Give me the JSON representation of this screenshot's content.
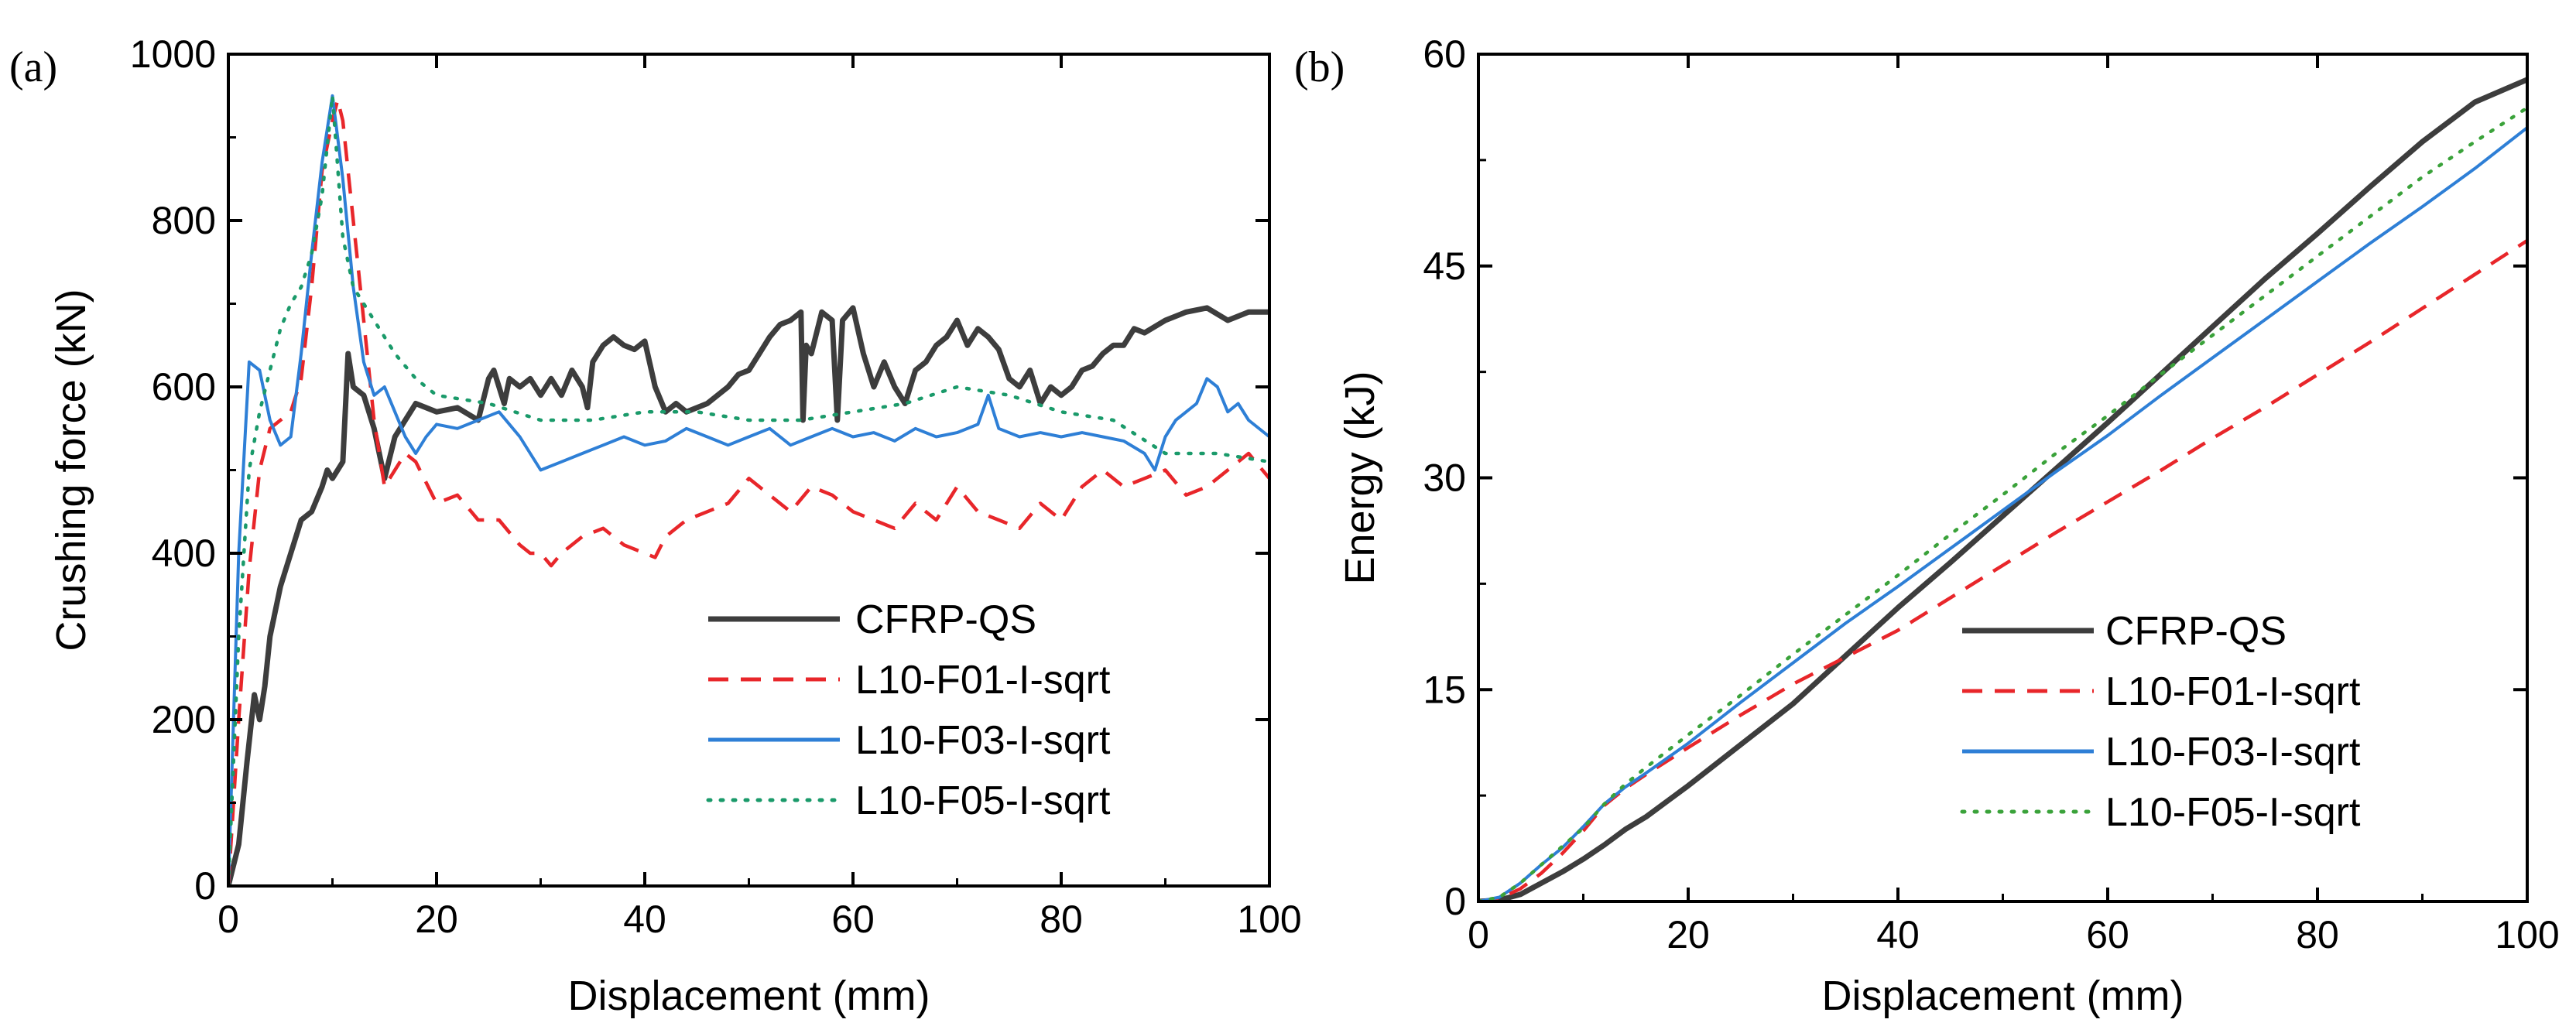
{
  "colors": {
    "CFRP-QS": "#3d3d3d",
    "L10-F01-I-sqrt": "#e8262a",
    "L10-F03-I-sqrt": "#2e7fd6",
    "L10-F05-I-sqrt": "#1a9a6a",
    "L10-F05-I-sqrt-b": "#3aa23a"
  },
  "chart_data": [
    {
      "type": "line",
      "panel_label": "(a)",
      "title": "",
      "xlabel": "Displacement (mm)",
      "ylabel": "Crushing force (kN)",
      "xlim": [
        0,
        100
      ],
      "ylim": [
        0,
        1000
      ],
      "xticks": [
        0,
        20,
        40,
        60,
        80,
        100
      ],
      "yticks": [
        0,
        200,
        400,
        600,
        800,
        1000
      ],
      "legend_position": "bottom-right",
      "series": [
        {
          "name": "CFRP-QS",
          "style": "solid",
          "x": [
            0,
            1,
            1.8,
            2.5,
            3,
            3.5,
            4,
            5,
            6,
            7,
            8,
            9,
            9.5,
            10,
            11,
            11.5,
            12,
            13,
            14,
            14.5,
            15,
            16,
            17,
            18,
            20,
            22,
            24,
            25,
            25.5,
            26,
            26.5,
            27,
            28,
            29,
            30,
            31,
            32,
            33,
            34,
            34.5,
            35,
            36,
            37,
            38,
            39,
            40,
            41,
            42,
            43,
            44,
            46,
            48,
            49,
            50,
            51,
            52,
            53,
            54,
            55,
            55.2,
            55.5,
            56,
            57,
            58,
            58.5,
            59,
            60,
            61,
            62,
            63,
            64,
            65,
            66,
            67,
            68,
            69,
            70,
            71,
            72,
            73,
            74,
            75,
            76,
            77,
            78,
            79,
            80,
            81,
            82,
            83,
            84,
            85,
            86,
            87,
            88,
            90,
            92,
            94,
            96,
            98,
            100
          ],
          "values": [
            0,
            50,
            150,
            230,
            200,
            240,
            300,
            360,
            400,
            440,
            450,
            480,
            500,
            490,
            510,
            640,
            600,
            590,
            550,
            520,
            490,
            540,
            560,
            580,
            570,
            575,
            560,
            610,
            620,
            600,
            580,
            610,
            600,
            610,
            590,
            610,
            590,
            620,
            600,
            575,
            630,
            650,
            660,
            650,
            645,
            655,
            600,
            570,
            580,
            570,
            580,
            600,
            615,
            620,
            640,
            660,
            675,
            680,
            690,
            560,
            650,
            640,
            690,
            680,
            560,
            680,
            695,
            640,
            600,
            630,
            600,
            580,
            620,
            630,
            650,
            660,
            680,
            650,
            670,
            660,
            645,
            610,
            600,
            620,
            580,
            600,
            590,
            600,
            620,
            625,
            640,
            650,
            650,
            670,
            665,
            680,
            690,
            695,
            680,
            690,
            690
          ]
        },
        {
          "name": "L10-F01-I-sqrt",
          "style": "dashed",
          "x": [
            0,
            1,
            2,
            3,
            4,
            5,
            6,
            7,
            8,
            9,
            10,
            10.5,
            11,
            12,
            13,
            14,
            15,
            16,
            17,
            18,
            20,
            22,
            24,
            26,
            28,
            29,
            30,
            31,
            32,
            34,
            36,
            38,
            40,
            41,
            42,
            44,
            46,
            48,
            50,
            52,
            54,
            56,
            58,
            60,
            62,
            64,
            66,
            68,
            70,
            72,
            74,
            76,
            78,
            80,
            82,
            84,
            86,
            88,
            90,
            92,
            94,
            96,
            98,
            100
          ],
          "values": [
            0,
            200,
            380,
            500,
            550,
            560,
            570,
            610,
            720,
            860,
            920,
            945,
            920,
            800,
            680,
            560,
            480,
            500,
            520,
            510,
            460,
            470,
            440,
            440,
            410,
            400,
            400,
            385,
            400,
            420,
            430,
            410,
            400,
            395,
            420,
            440,
            450,
            460,
            490,
            470,
            450,
            480,
            470,
            450,
            440,
            430,
            460,
            440,
            480,
            450,
            440,
            430,
            460,
            440,
            480,
            500,
            480,
            490,
            500,
            470,
            480,
            500,
            520,
            490
          ]
        },
        {
          "name": "L10-F03-I-sqrt",
          "style": "solid",
          "x": [
            0,
            1,
            2,
            3,
            4,
            5,
            6,
            7,
            8,
            9,
            10,
            11,
            12,
            13,
            14,
            15,
            16,
            17,
            18,
            19,
            20,
            22,
            24,
            26,
            28,
            30,
            32,
            34,
            36,
            38,
            40,
            42,
            44,
            46,
            48,
            50,
            52,
            54,
            56,
            58,
            60,
            62,
            64,
            66,
            68,
            70,
            72,
            73,
            74,
            76,
            78,
            80,
            82,
            84,
            86,
            88,
            89,
            90,
            91,
            92,
            93,
            94,
            95,
            96,
            97,
            98,
            100
          ],
          "values": [
            0,
            400,
            630,
            620,
            560,
            530,
            540,
            640,
            760,
            870,
            950,
            850,
            720,
            630,
            590,
            600,
            570,
            540,
            520,
            540,
            555,
            550,
            560,
            570,
            540,
            500,
            510,
            520,
            530,
            540,
            530,
            535,
            550,
            540,
            530,
            540,
            550,
            530,
            540,
            550,
            540,
            545,
            535,
            550,
            540,
            545,
            555,
            590,
            550,
            540,
            545,
            540,
            545,
            540,
            535,
            520,
            500,
            540,
            560,
            570,
            580,
            610,
            600,
            570,
            580,
            560,
            540
          ]
        },
        {
          "name": "L10-F05-I-sqrt",
          "style": "dotted",
          "x": [
            0,
            1,
            2,
            3,
            4,
            5,
            6,
            7,
            8,
            9,
            10,
            11,
            12,
            13,
            14,
            15,
            16,
            18,
            20,
            25,
            30,
            35,
            40,
            45,
            50,
            55,
            60,
            65,
            70,
            75,
            80,
            85,
            90,
            95,
            100
          ],
          "values": [
            0,
            300,
            500,
            570,
            620,
            670,
            700,
            720,
            760,
            830,
            950,
            780,
            720,
            700,
            680,
            660,
            640,
            610,
            590,
            580,
            560,
            560,
            570,
            570,
            560,
            560,
            570,
            580,
            600,
            590,
            570,
            560,
            520,
            520,
            510
          ]
        }
      ]
    },
    {
      "type": "line",
      "panel_label": "(b)",
      "title": "",
      "xlabel": "Displacement (mm)",
      "ylabel": "Energy (kJ)",
      "xlim": [
        0,
        100
      ],
      "ylim": [
        0,
        60
      ],
      "xticks": [
        0,
        20,
        40,
        60,
        80,
        100
      ],
      "yticks": [
        0,
        15,
        30,
        45,
        60
      ],
      "legend_position": "bottom-right",
      "series": [
        {
          "name": "CFRP-QS",
          "style": "solid",
          "x": [
            0,
            2,
            4,
            6,
            8,
            10,
            12,
            14,
            16,
            20,
            25,
            30,
            35,
            40,
            45,
            50,
            55,
            60,
            65,
            70,
            75,
            80,
            85,
            90,
            95,
            100
          ],
          "values": [
            0,
            0.1,
            0.5,
            1.3,
            2.1,
            3.0,
            4.0,
            5.1,
            6.0,
            8.2,
            11.1,
            14.0,
            17.4,
            20.8,
            24.0,
            27.3,
            30.6,
            33.9,
            37.3,
            40.7,
            44.1,
            47.3,
            50.6,
            53.8,
            56.6,
            58.2
          ]
        },
        {
          "name": "L10-F01-I-sqrt",
          "style": "dashed",
          "x": [
            0,
            2,
            4,
            6,
            8,
            10,
            12,
            14,
            16,
            20,
            25,
            30,
            35,
            40,
            45,
            50,
            55,
            60,
            65,
            70,
            75,
            80,
            85,
            90,
            95,
            100
          ],
          "values": [
            0,
            0.2,
            0.9,
            2.0,
            3.4,
            5.0,
            6.8,
            8.0,
            9.0,
            10.9,
            13.2,
            15.4,
            17.3,
            19.2,
            21.5,
            23.8,
            26.1,
            28.3,
            30.5,
            32.8,
            35.0,
            37.3,
            39.6,
            42.0,
            44.4,
            46.8
          ]
        },
        {
          "name": "L10-F03-I-sqrt",
          "style": "solid",
          "x": [
            0,
            2,
            4,
            6,
            8,
            10,
            12,
            14,
            16,
            20,
            25,
            30,
            35,
            40,
            45,
            50,
            55,
            60,
            65,
            70,
            75,
            80,
            85,
            90,
            95,
            100
          ],
          "values": [
            0,
            0.3,
            1.3,
            2.6,
            3.8,
            5.3,
            6.9,
            8.1,
            9.1,
            11.2,
            14.1,
            16.9,
            19.7,
            22.3,
            25.0,
            27.7,
            30.4,
            33.0,
            35.8,
            38.5,
            41.2,
            43.9,
            46.6,
            49.2,
            51.9,
            54.8
          ]
        },
        {
          "name": "L10-F05-I-sqrt",
          "style": "dotted",
          "x": [
            0,
            2,
            4,
            6,
            8,
            10,
            12,
            14,
            16,
            20,
            25,
            30,
            35,
            40,
            45,
            50,
            55,
            60,
            65,
            70,
            75,
            80,
            85,
            90,
            95,
            100
          ],
          "values": [
            0,
            0.3,
            1.3,
            2.6,
            3.9,
            5.2,
            6.9,
            8.3,
            9.5,
            11.8,
            14.6,
            17.5,
            20.3,
            23.1,
            26.0,
            28.8,
            31.7,
            34.4,
            37.3,
            40.1,
            42.9,
            45.7,
            48.5,
            51.3,
            53.8,
            56.2
          ]
        }
      ]
    }
  ]
}
